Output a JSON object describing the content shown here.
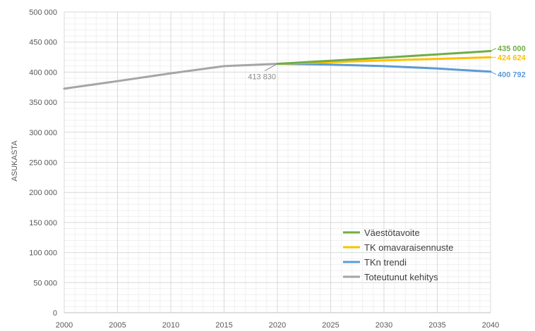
{
  "chart_data": {
    "type": "line",
    "title": "",
    "xlabel": "",
    "ylabel": "ASUKASTA",
    "xlim": [
      2000,
      2040
    ],
    "ylim": [
      0,
      500000
    ],
    "x_ticks": [
      2000,
      2005,
      2010,
      2015,
      2020,
      2025,
      2030,
      2035,
      2040
    ],
    "x_tick_labels": [
      "2000",
      "2005",
      "2010",
      "2015",
      "2020",
      "2025",
      "2030",
      "2035",
      "2040"
    ],
    "y_ticks": [
      0,
      50000,
      100000,
      150000,
      200000,
      250000,
      300000,
      350000,
      400000,
      450000,
      500000
    ],
    "y_tick_labels": [
      "0",
      "50 000",
      "100 000",
      "150 000",
      "200 000",
      "250 000",
      "300 000",
      "350 000",
      "400 000",
      "450 000",
      "500 000"
    ],
    "grid": true,
    "legend_position": "bottom-right",
    "series": [
      {
        "name": "Väestötavoite",
        "color": "#70ad47",
        "points": [
          [
            2020,
            413830
          ],
          [
            2025,
            419000
          ],
          [
            2030,
            424000
          ],
          [
            2035,
            429500
          ],
          [
            2040,
            435000
          ]
        ],
        "end_label": "435 000"
      },
      {
        "name": "TK omavaraisennuste",
        "color": "#ffc000",
        "points": [
          [
            2020,
            413830
          ],
          [
            2025,
            416500
          ],
          [
            2030,
            419500
          ],
          [
            2035,
            422000
          ],
          [
            2040,
            424624
          ]
        ],
        "end_label": "424 624"
      },
      {
        "name": "TKn trendi",
        "color": "#5b9bd5",
        "points": [
          [
            2020,
            413830
          ],
          [
            2025,
            412500
          ],
          [
            2030,
            410000
          ],
          [
            2035,
            406000
          ],
          [
            2040,
            400792
          ]
        ],
        "end_label": "400 792"
      },
      {
        "name": "Toteutunut kehitys",
        "color": "#a5a5a5",
        "points": [
          [
            2000,
            372500
          ],
          [
            2005,
            385000
          ],
          [
            2010,
            398000
          ],
          [
            2015,
            410000
          ],
          [
            2020,
            413830
          ]
        ]
      }
    ],
    "annotations": [
      {
        "x": 2020,
        "y": 413830,
        "label": "413 830"
      }
    ]
  }
}
